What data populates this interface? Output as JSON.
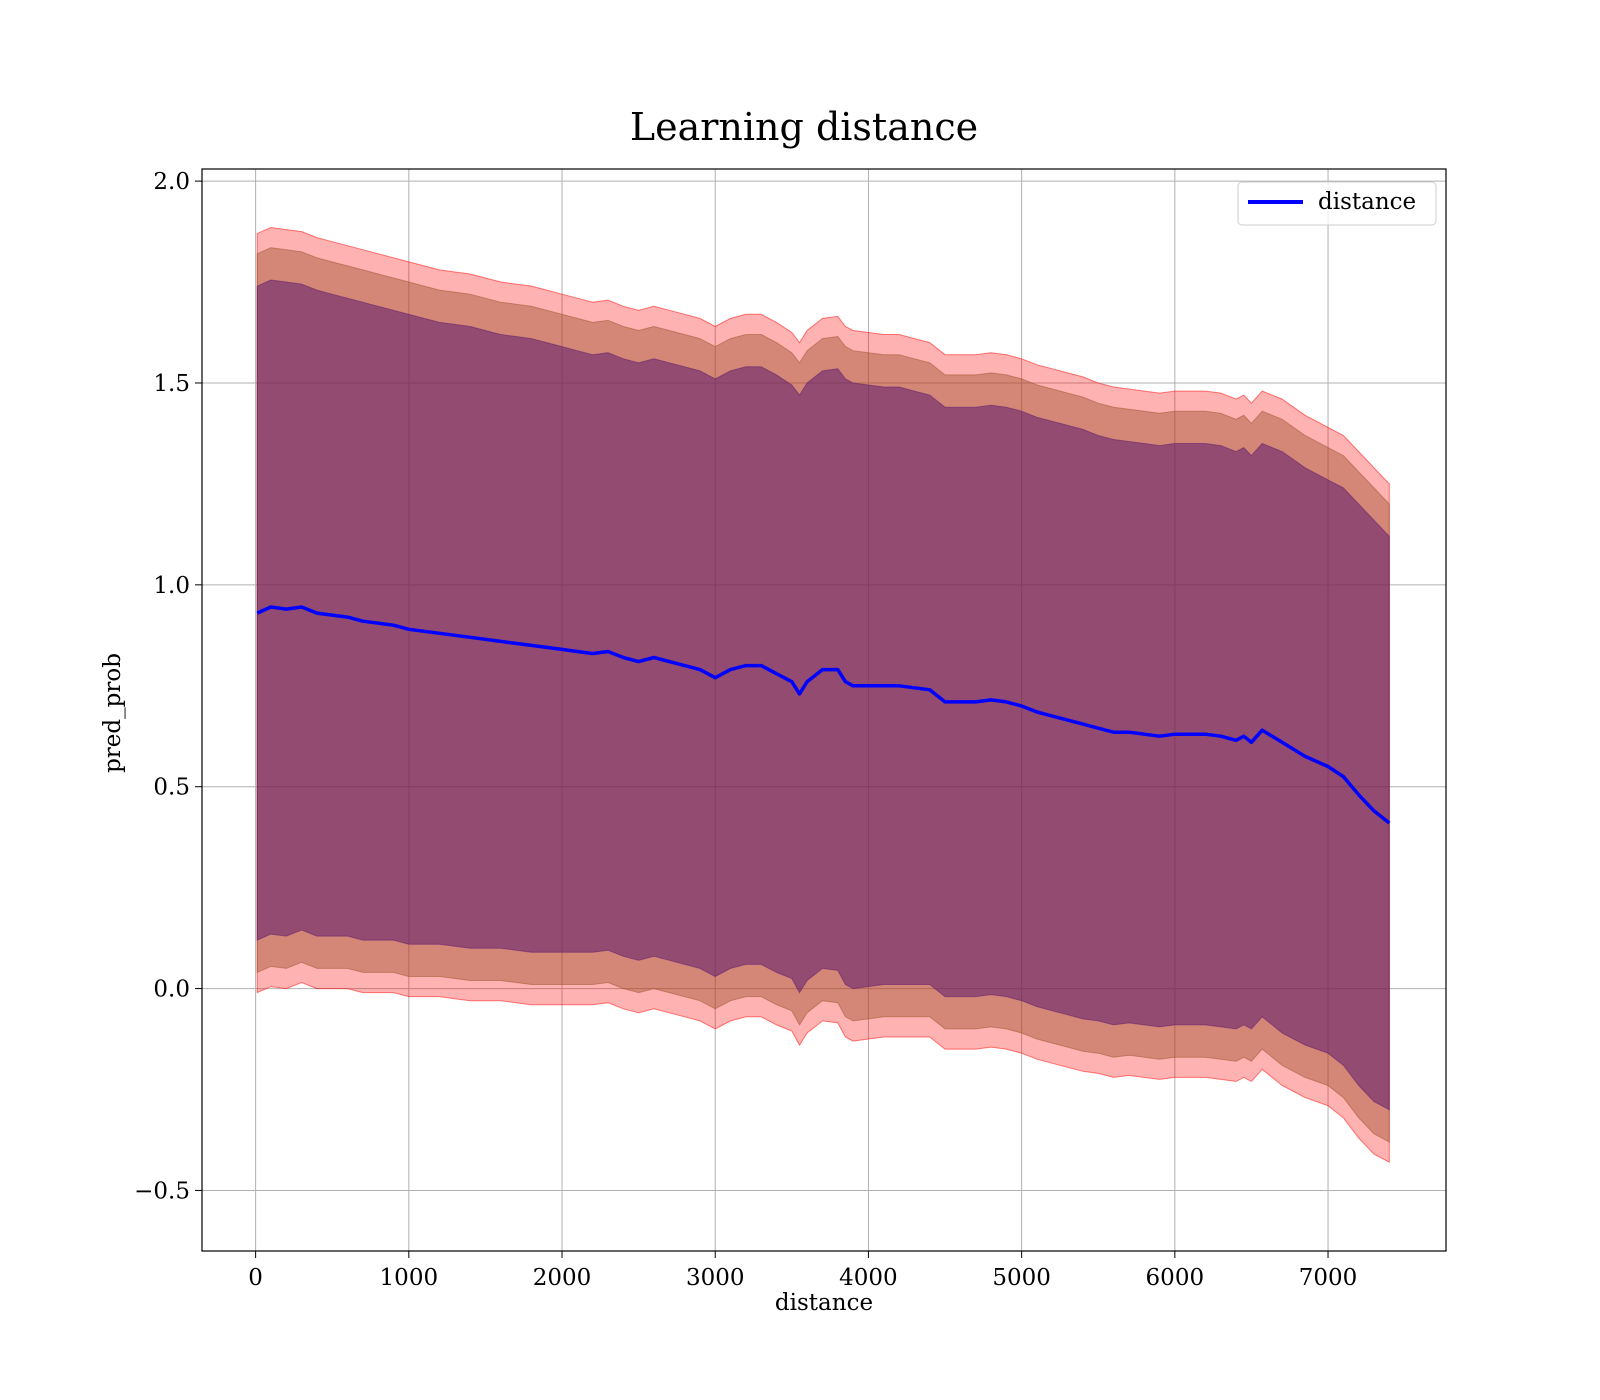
{
  "chart_data": {
    "type": "line",
    "title": "Learning distance",
    "xlabel": "distance",
    "ylabel": "pred_prob",
    "xlim": [
      -350,
      7770
    ],
    "ylim": [
      -0.65,
      2.03
    ],
    "xticks": [
      0,
      1000,
      2000,
      3000,
      4000,
      5000,
      6000,
      7000
    ],
    "xtick_labels": [
      "0",
      "1000",
      "2000",
      "3000",
      "4000",
      "5000",
      "6000",
      "7000"
    ],
    "yticks": [
      -0.5,
      0.0,
      0.5,
      1.0,
      1.5,
      2.0
    ],
    "ytick_labels": [
      "−0.5",
      "0.0",
      "0.5",
      "1.0",
      "1.5",
      "2.0"
    ],
    "grid": true,
    "legend": {
      "position": "top-right",
      "entries": [
        "distance"
      ]
    },
    "series": [
      {
        "name": "distance",
        "color": "#0000ff",
        "x": [
          10,
          100,
          200,
          300,
          400,
          500,
          600,
          700,
          800,
          900,
          1000,
          1100,
          1200,
          1300,
          1400,
          1500,
          1600,
          1700,
          1800,
          1900,
          2000,
          2100,
          2200,
          2300,
          2400,
          2500,
          2600,
          2700,
          2800,
          2900,
          3000,
          3100,
          3200,
          3300,
          3400,
          3500,
          3550,
          3600,
          3700,
          3800,
          3850,
          3900,
          4000,
          4100,
          4200,
          4300,
          4400,
          4500,
          4600,
          4700,
          4800,
          4900,
          5000,
          5100,
          5200,
          5300,
          5400,
          5500,
          5600,
          5700,
          5800,
          5900,
          6000,
          6100,
          6200,
          6300,
          6400,
          6450,
          6500,
          6570,
          6700,
          6850,
          7000,
          7100,
          7200,
          7300,
          7400
        ],
        "y": [
          0.93,
          0.945,
          0.94,
          0.945,
          0.93,
          0.925,
          0.92,
          0.91,
          0.905,
          0.9,
          0.89,
          0.885,
          0.88,
          0.875,
          0.87,
          0.865,
          0.86,
          0.855,
          0.85,
          0.845,
          0.84,
          0.835,
          0.83,
          0.835,
          0.82,
          0.81,
          0.82,
          0.81,
          0.8,
          0.79,
          0.77,
          0.79,
          0.8,
          0.8,
          0.78,
          0.76,
          0.73,
          0.76,
          0.79,
          0.79,
          0.76,
          0.75,
          0.75,
          0.75,
          0.75,
          0.745,
          0.74,
          0.71,
          0.71,
          0.71,
          0.715,
          0.71,
          0.7,
          0.685,
          0.675,
          0.665,
          0.655,
          0.645,
          0.635,
          0.635,
          0.63,
          0.625,
          0.63,
          0.63,
          0.63,
          0.625,
          0.615,
          0.625,
          0.61,
          0.64,
          0.61,
          0.575,
          0.55,
          0.525,
          0.48,
          0.44,
          0.41
        ]
      }
    ],
    "bands": [
      {
        "color": "#ff0000",
        "alpha": 0.3,
        "upper": [
          1.87,
          1.885,
          1.88,
          1.875,
          1.86,
          1.85,
          1.84,
          1.83,
          1.82,
          1.81,
          1.8,
          1.79,
          1.78,
          1.775,
          1.77,
          1.76,
          1.75,
          1.745,
          1.74,
          1.73,
          1.72,
          1.71,
          1.7,
          1.705,
          1.69,
          1.68,
          1.69,
          1.68,
          1.67,
          1.66,
          1.64,
          1.66,
          1.67,
          1.67,
          1.65,
          1.625,
          1.6,
          1.63,
          1.66,
          1.665,
          1.64,
          1.63,
          1.625,
          1.62,
          1.62,
          1.61,
          1.6,
          1.57,
          1.57,
          1.57,
          1.575,
          1.57,
          1.56,
          1.545,
          1.535,
          1.525,
          1.515,
          1.5,
          1.49,
          1.485,
          1.48,
          1.475,
          1.48,
          1.48,
          1.48,
          1.475,
          1.46,
          1.47,
          1.45,
          1.48,
          1.46,
          1.42,
          1.39,
          1.37,
          1.33,
          1.29,
          1.25
        ],
        "lower": [
          -0.01,
          0.005,
          0.0,
          0.015,
          0.0,
          -0.0,
          -0.0,
          -0.01,
          -0.01,
          -0.01,
          -0.02,
          -0.02,
          -0.02,
          -0.025,
          -0.03,
          -0.03,
          -0.03,
          -0.035,
          -0.04,
          -0.04,
          -0.04,
          -0.04,
          -0.04,
          -0.035,
          -0.05,
          -0.06,
          -0.05,
          -0.06,
          -0.07,
          -0.08,
          -0.1,
          -0.08,
          -0.07,
          -0.07,
          -0.09,
          -0.105,
          -0.14,
          -0.11,
          -0.08,
          -0.085,
          -0.12,
          -0.13,
          -0.125,
          -0.12,
          -0.12,
          -0.12,
          -0.12,
          -0.15,
          -0.15,
          -0.15,
          -0.145,
          -0.15,
          -0.16,
          -0.175,
          -0.185,
          -0.195,
          -0.205,
          -0.21,
          -0.22,
          -0.215,
          -0.22,
          -0.225,
          -0.22,
          -0.22,
          -0.22,
          -0.225,
          -0.23,
          -0.22,
          -0.23,
          -0.2,
          -0.24,
          -0.27,
          -0.29,
          -0.32,
          -0.37,
          -0.41,
          -0.43
        ]
      },
      {
        "color": "#a0522d",
        "alpha": 0.45,
        "upper": [
          1.82,
          1.835,
          1.83,
          1.825,
          1.81,
          1.8,
          1.79,
          1.78,
          1.77,
          1.76,
          1.75,
          1.74,
          1.73,
          1.725,
          1.72,
          1.71,
          1.7,
          1.695,
          1.69,
          1.68,
          1.67,
          1.66,
          1.65,
          1.655,
          1.64,
          1.63,
          1.64,
          1.63,
          1.62,
          1.61,
          1.59,
          1.61,
          1.62,
          1.62,
          1.6,
          1.575,
          1.55,
          1.58,
          1.61,
          1.615,
          1.59,
          1.58,
          1.575,
          1.57,
          1.57,
          1.56,
          1.55,
          1.52,
          1.52,
          1.52,
          1.525,
          1.52,
          1.51,
          1.495,
          1.485,
          1.475,
          1.465,
          1.45,
          1.44,
          1.435,
          1.43,
          1.425,
          1.43,
          1.43,
          1.43,
          1.425,
          1.41,
          1.42,
          1.4,
          1.43,
          1.41,
          1.37,
          1.34,
          1.32,
          1.28,
          1.24,
          1.2
        ],
        "lower": [
          0.04,
          0.055,
          0.05,
          0.065,
          0.05,
          0.05,
          0.05,
          0.04,
          0.04,
          0.04,
          0.03,
          0.03,
          0.03,
          0.025,
          0.02,
          0.02,
          0.02,
          0.015,
          0.01,
          0.01,
          0.01,
          0.01,
          0.01,
          0.015,
          -0.0,
          -0.01,
          -0.0,
          -0.01,
          -0.02,
          -0.03,
          -0.05,
          -0.03,
          -0.02,
          -0.02,
          -0.04,
          -0.055,
          -0.09,
          -0.06,
          -0.03,
          -0.035,
          -0.07,
          -0.08,
          -0.075,
          -0.07,
          -0.07,
          -0.07,
          -0.07,
          -0.1,
          -0.1,
          -0.1,
          -0.095,
          -0.1,
          -0.11,
          -0.125,
          -0.135,
          -0.145,
          -0.155,
          -0.16,
          -0.17,
          -0.165,
          -0.17,
          -0.175,
          -0.17,
          -0.17,
          -0.17,
          -0.175,
          -0.18,
          -0.17,
          -0.18,
          -0.15,
          -0.19,
          -0.22,
          -0.24,
          -0.27,
          -0.32,
          -0.36,
          -0.38
        ]
      },
      {
        "color": "#5c1a6e",
        "alpha": 0.55,
        "upper": [
          1.74,
          1.755,
          1.75,
          1.745,
          1.73,
          1.72,
          1.71,
          1.7,
          1.69,
          1.68,
          1.67,
          1.66,
          1.65,
          1.645,
          1.64,
          1.63,
          1.62,
          1.615,
          1.61,
          1.6,
          1.59,
          1.58,
          1.57,
          1.575,
          1.56,
          1.55,
          1.56,
          1.55,
          1.54,
          1.53,
          1.51,
          1.53,
          1.54,
          1.54,
          1.52,
          1.495,
          1.47,
          1.5,
          1.53,
          1.535,
          1.51,
          1.5,
          1.495,
          1.49,
          1.49,
          1.48,
          1.47,
          1.44,
          1.44,
          1.44,
          1.445,
          1.44,
          1.43,
          1.415,
          1.405,
          1.395,
          1.385,
          1.37,
          1.36,
          1.355,
          1.35,
          1.345,
          1.35,
          1.35,
          1.35,
          1.345,
          1.33,
          1.34,
          1.32,
          1.35,
          1.33,
          1.29,
          1.26,
          1.24,
          1.2,
          1.16,
          1.12
        ],
        "lower": [
          0.12,
          0.135,
          0.13,
          0.145,
          0.13,
          0.13,
          0.13,
          0.12,
          0.12,
          0.12,
          0.11,
          0.11,
          0.11,
          0.105,
          0.1,
          0.1,
          0.1,
          0.095,
          0.09,
          0.09,
          0.09,
          0.09,
          0.09,
          0.095,
          0.08,
          0.07,
          0.08,
          0.07,
          0.06,
          0.05,
          0.03,
          0.05,
          0.06,
          0.06,
          0.04,
          0.025,
          -0.01,
          0.02,
          0.05,
          0.045,
          0.01,
          0.0,
          0.005,
          0.01,
          0.01,
          0.01,
          0.01,
          -0.02,
          -0.02,
          -0.02,
          -0.015,
          -0.02,
          -0.03,
          -0.045,
          -0.055,
          -0.065,
          -0.075,
          -0.08,
          -0.09,
          -0.085,
          -0.09,
          -0.095,
          -0.09,
          -0.09,
          -0.09,
          -0.095,
          -0.1,
          -0.09,
          -0.1,
          -0.07,
          -0.11,
          -0.14,
          -0.16,
          -0.19,
          -0.24,
          -0.28,
          -0.3
        ]
      }
    ]
  }
}
